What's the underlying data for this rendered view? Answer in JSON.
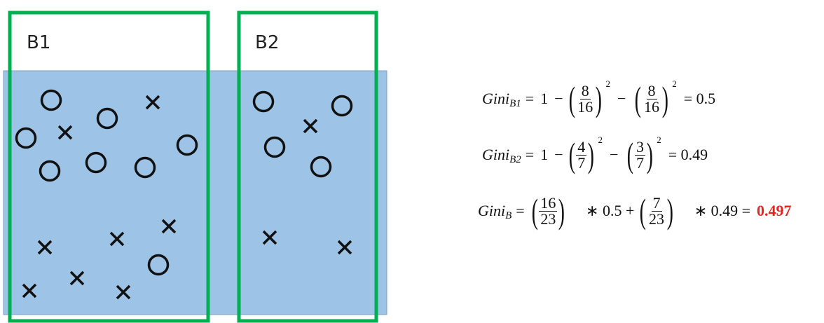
{
  "boxes": {
    "b1_label": "B1",
    "b2_label": "B2"
  },
  "colors": {
    "background_region": "#9dc3e6",
    "box_border": "#00b050",
    "result": "#e8231f"
  },
  "marker_icons": {
    "circle": "circle-marker",
    "cross": "x-marker"
  },
  "equations": {
    "gini_word": "Gini",
    "b1": {
      "sub": "B1",
      "one": "1",
      "minus": "−",
      "eq": "=",
      "f1_num": "8",
      "f1_den": "16",
      "f2_num": "8",
      "f2_den": "16",
      "exp": "2",
      "result": "= 0.5"
    },
    "b2": {
      "sub": "B2",
      "one": "1",
      "minus": "−",
      "eq": "=",
      "f1_num": "4",
      "f1_den": "7",
      "f2_num": "3",
      "f2_den": "7",
      "exp": "2",
      "result": "= 0.49"
    },
    "total": {
      "sub": "B",
      "eq": "=",
      "f1_num": "16",
      "f1_den": "23",
      "mid": "∗ 0.5 +",
      "f2_num": "7",
      "f2_den": "23",
      "tail": "∗ 0.49 =",
      "result": "0.497"
    }
  }
}
